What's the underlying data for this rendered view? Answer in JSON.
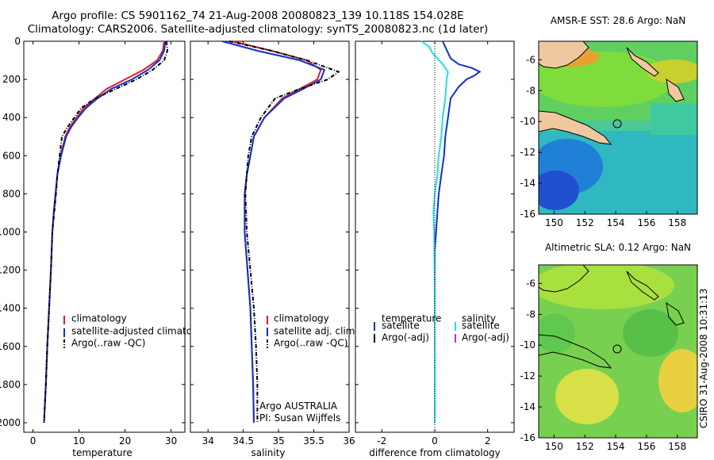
{
  "header": {
    "line1": "Argo profile: CS 5901162_74 21-Aug-2008 20080823_139 10.118S 154.028E",
    "line2": "Climatology: CARS2006. Satellite-adjusted climatology: synTS_20080823.nc (1d later)"
  },
  "sidebar_text": "CSIRO 31-Aug-2008 10:31:13",
  "colors": {
    "climatology": "#e02020",
    "satellite": "#1030d0",
    "argo": "#000000",
    "cyan": "#20e0e0",
    "magenta": "#e020e0"
  },
  "chart_data": [
    {
      "type": "line",
      "id": "temperature",
      "xlabel": "temperature",
      "ylabel": "",
      "xlim": [
        -2,
        33
      ],
      "ylim": [
        2050,
        0
      ],
      "xticks": [
        0,
        10,
        20,
        30
      ],
      "yticks": [
        0,
        200,
        400,
        600,
        800,
        1000,
        1200,
        1400,
        1600,
        1800,
        2000
      ],
      "legend": [
        "climatology",
        "satellite-adjusted climatology",
        "Argo(..raw -QC)"
      ],
      "series": [
        {
          "name": "climatology",
          "color": "#e02020",
          "style": "solid",
          "points": [
            [
              28.5,
              0
            ],
            [
              28.2,
              50
            ],
            [
              27.0,
              100
            ],
            [
              24.0,
              150
            ],
            [
              20.0,
              200
            ],
            [
              16.0,
              250
            ],
            [
              13.5,
              300
            ],
            [
              11.0,
              350
            ],
            [
              9.5,
              400
            ],
            [
              8.0,
              450
            ],
            [
              7.0,
              500
            ],
            [
              6.0,
              600
            ],
            [
              5.3,
              700
            ],
            [
              4.9,
              800
            ],
            [
              4.5,
              900
            ],
            [
              4.2,
              1000
            ],
            [
              3.9,
              1200
            ],
            [
              3.5,
              1400
            ],
            [
              3.1,
              1600
            ],
            [
              2.8,
              1800
            ],
            [
              2.4,
              2000
            ]
          ]
        },
        {
          "name": "satellite-adjusted climatology",
          "color": "#1030d0",
          "style": "solid",
          "points": [
            [
              28.8,
              0
            ],
            [
              28.5,
              50
            ],
            [
              27.5,
              100
            ],
            [
              25.0,
              150
            ],
            [
              21.5,
              200
            ],
            [
              17.0,
              250
            ],
            [
              14.0,
              300
            ],
            [
              11.5,
              350
            ],
            [
              9.8,
              400
            ],
            [
              8.3,
              450
            ],
            [
              7.2,
              500
            ],
            [
              6.1,
              600
            ],
            [
              5.3,
              700
            ],
            [
              4.9,
              800
            ],
            [
              4.5,
              900
            ],
            [
              4.2,
              1000
            ],
            [
              3.9,
              1200
            ],
            [
              3.5,
              1400
            ],
            [
              3.1,
              1600
            ],
            [
              2.8,
              1800
            ],
            [
              2.4,
              2000
            ]
          ]
        },
        {
          "name": "Argo(..raw -QC)",
          "color": "#000000",
          "style": "dashdot",
          "points": [
            [
              29.0,
              0
            ],
            [
              29.2,
              50
            ],
            [
              28.5,
              100
            ],
            [
              26.0,
              150
            ],
            [
              22.5,
              200
            ],
            [
              18.0,
              250
            ],
            [
              13.5,
              300
            ],
            [
              10.5,
              350
            ],
            [
              9.0,
              400
            ],
            [
              7.5,
              450
            ],
            [
              6.3,
              500
            ],
            [
              5.8,
              600
            ],
            [
              5.3,
              700
            ],
            [
              5.0,
              800
            ],
            [
              4.6,
              900
            ],
            [
              4.2,
              1000
            ],
            [
              3.9,
              1200
            ],
            [
              3.5,
              1400
            ],
            [
              3.1,
              1600
            ],
            [
              2.8,
              1800
            ],
            [
              2.4,
              2000
            ]
          ]
        }
      ]
    },
    {
      "type": "line",
      "id": "salinity",
      "xlabel": "salinity",
      "xlim": [
        33.75,
        36.0
      ],
      "ylim": [
        2050,
        0
      ],
      "xticks": [
        34,
        34.5,
        35,
        35.5,
        36
      ],
      "legend": [
        "climatology",
        "satellite adj. clim.",
        "Argo(..raw -QC)"
      ],
      "annotation": [
        "Argo AUSTRALIA",
        "PI: Susan Wijffels"
      ],
      "series": [
        {
          "name": "climatology",
          "color": "#e02020",
          "style": "solid",
          "points": [
            [
              34.35,
              0
            ],
            [
              34.9,
              50
            ],
            [
              35.4,
              100
            ],
            [
              35.6,
              150
            ],
            [
              35.55,
              200
            ],
            [
              35.3,
              250
            ],
            [
              35.05,
              300
            ],
            [
              34.8,
              400
            ],
            [
              34.65,
              500
            ],
            [
              34.6,
              600
            ],
            [
              34.55,
              700
            ],
            [
              34.52,
              800
            ],
            [
              34.52,
              1000
            ],
            [
              34.56,
              1200
            ],
            [
              34.6,
              1400
            ],
            [
              34.62,
              1600
            ],
            [
              34.64,
              1800
            ],
            [
              34.65,
              2000
            ]
          ]
        },
        {
          "name": "satellite adj. clim.",
          "color": "#1030d0",
          "style": "solid",
          "points": [
            [
              34.2,
              0
            ],
            [
              34.7,
              50
            ],
            [
              35.3,
              100
            ],
            [
              35.65,
              150
            ],
            [
              35.6,
              200
            ],
            [
              35.35,
              250
            ],
            [
              35.08,
              300
            ],
            [
              34.8,
              400
            ],
            [
              34.65,
              500
            ],
            [
              34.6,
              600
            ],
            [
              34.55,
              700
            ],
            [
              34.52,
              800
            ],
            [
              34.52,
              1000
            ],
            [
              34.56,
              1200
            ],
            [
              34.6,
              1400
            ],
            [
              34.62,
              1600
            ],
            [
              34.64,
              1800
            ],
            [
              34.65,
              2000
            ]
          ]
        },
        {
          "name": "Argo(..raw -QC)",
          "color": "#000000",
          "style": "dashdot",
          "points": [
            [
              34.3,
              0
            ],
            [
              34.9,
              50
            ],
            [
              35.4,
              100
            ],
            [
              35.85,
              160
            ],
            [
              35.7,
              200
            ],
            [
              35.3,
              250
            ],
            [
              34.95,
              300
            ],
            [
              34.75,
              400
            ],
            [
              34.62,
              500
            ],
            [
              34.57,
              600
            ],
            [
              34.55,
              700
            ],
            [
              34.53,
              800
            ],
            [
              34.55,
              1000
            ],
            [
              34.6,
              1200
            ],
            [
              34.65,
              1400
            ],
            [
              34.68,
              1600
            ],
            [
              34.7,
              1800
            ],
            [
              34.7,
              2000
            ]
          ]
        }
      ]
    },
    {
      "type": "line",
      "id": "difference",
      "xlabel": "difference from climatology",
      "xlim": [
        -3.0,
        3.0
      ],
      "ylim": [
        2050,
        0
      ],
      "xticks": [
        -2,
        0,
        2
      ],
      "legend_left_title": "temperature",
      "legend_left": [
        "satellite",
        "Argo(-adj)"
      ],
      "legend_right_title": "salinity",
      "legend_right": [
        "satellite",
        "Argo(-adj)"
      ],
      "series": [
        {
          "name": "temperature satellite",
          "color": "#1030d0",
          "style": "solid",
          "points": [
            [
              0.3,
              0
            ],
            [
              0.4,
              30
            ],
            [
              0.5,
              60
            ],
            [
              0.6,
              90
            ],
            [
              0.9,
              120
            ],
            [
              1.4,
              140
            ],
            [
              1.7,
              160
            ],
            [
              1.5,
              180
            ],
            [
              1.2,
              200
            ],
            [
              0.9,
              240
            ],
            [
              0.6,
              300
            ],
            [
              0.5,
              400
            ],
            [
              0.4,
              500
            ],
            [
              0.35,
              600
            ],
            [
              0.25,
              700
            ],
            [
              0.15,
              800
            ],
            [
              0.1,
              900
            ],
            [
              0.05,
              1000
            ],
            [
              0.0,
              1100
            ],
            [
              0.0,
              2000
            ]
          ]
        },
        {
          "name": "salinity satellite",
          "color": "#20e0e0",
          "style": "solid",
          "points": [
            [
              -0.5,
              0
            ],
            [
              -0.2,
              30
            ],
            [
              -0.1,
              60
            ],
            [
              0.1,
              90
            ],
            [
              0.3,
              120
            ],
            [
              0.5,
              160
            ],
            [
              0.45,
              200
            ],
            [
              0.4,
              300
            ],
            [
              0.3,
              400
            ],
            [
              0.25,
              500
            ],
            [
              0.15,
              600
            ],
            [
              0.1,
              700
            ],
            [
              0.0,
              800
            ],
            [
              -0.05,
              900
            ],
            [
              -0.02,
              1000
            ],
            [
              -0.01,
              1200
            ],
            [
              0.0,
              1500
            ],
            [
              0.0,
              2000
            ]
          ]
        },
        {
          "name": "temperature Argo(-adj)",
          "color": "#000000",
          "style": "dotted",
          "points": [
            [
              0,
              0
            ],
            [
              0,
              2000
            ]
          ]
        }
      ]
    },
    {
      "type": "heatmap",
      "id": "sst-map",
      "title": "AMSR-E SST: 28.6 Argo: NaN",
      "xlim": [
        149,
        159.3
      ],
      "ylim": [
        -16,
        -4.8
      ],
      "xticks": [
        150,
        152,
        154,
        156,
        158
      ],
      "yticks": [
        -6,
        -8,
        -10,
        -12,
        -14,
        -16
      ],
      "marker": [
        154.03,
        -10.12
      ]
    },
    {
      "type": "heatmap",
      "id": "sla-map",
      "title": "Altimetric SLA: 0.12 Argo: NaN",
      "xlim": [
        149,
        159.3
      ],
      "ylim": [
        -16,
        -4.8
      ],
      "xticks": [
        150,
        152,
        154,
        156,
        158
      ],
      "yticks": [
        -6,
        -8,
        -10,
        -12,
        -14,
        -16
      ],
      "marker": [
        154.03,
        -10.12
      ]
    }
  ]
}
